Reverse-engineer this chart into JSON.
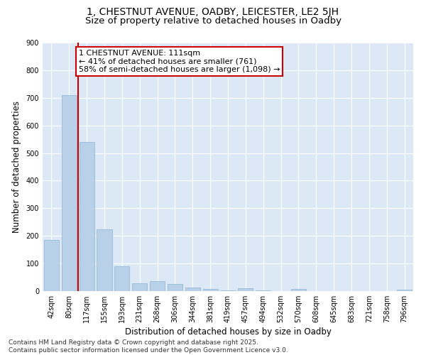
{
  "title_line1": "1, CHESTNUT AVENUE, OADBY, LEICESTER, LE2 5JH",
  "title_line2": "Size of property relative to detached houses in Oadby",
  "xlabel": "Distribution of detached houses by size in Oadby",
  "ylabel": "Number of detached properties",
  "categories": [
    "42sqm",
    "80sqm",
    "117sqm",
    "155sqm",
    "193sqm",
    "231sqm",
    "268sqm",
    "306sqm",
    "344sqm",
    "381sqm",
    "419sqm",
    "457sqm",
    "494sqm",
    "532sqm",
    "570sqm",
    "608sqm",
    "645sqm",
    "683sqm",
    "721sqm",
    "758sqm",
    "796sqm"
  ],
  "values": [
    185,
    710,
    540,
    225,
    90,
    28,
    35,
    25,
    13,
    8,
    2,
    10,
    2,
    0,
    7,
    0,
    0,
    0,
    0,
    0,
    5
  ],
  "bar_color": "#b8d0e8",
  "bar_edge_color": "#8ab4d4",
  "vline_x": 1.5,
  "vline_color": "#cc0000",
  "annotation_text_line1": "1 CHESTNUT AVENUE: 111sqm",
  "annotation_text_line2": "← 41% of detached houses are smaller (761)",
  "annotation_text_line3": "58% of semi-detached houses are larger (1,098) →",
  "annotation_box_color": "#cc0000",
  "ylim": [
    0,
    900
  ],
  "yticks": [
    0,
    100,
    200,
    300,
    400,
    500,
    600,
    700,
    800,
    900
  ],
  "background_color": "#dce8f5",
  "footer_text": "Contains HM Land Registry data © Crown copyright and database right 2025.\nContains public sector information licensed under the Open Government Licence v3.0.",
  "title_fontsize": 10,
  "subtitle_fontsize": 9.5,
  "axis_label_fontsize": 8.5,
  "tick_fontsize": 7,
  "footer_fontsize": 6.5,
  "annotation_fontsize": 8
}
